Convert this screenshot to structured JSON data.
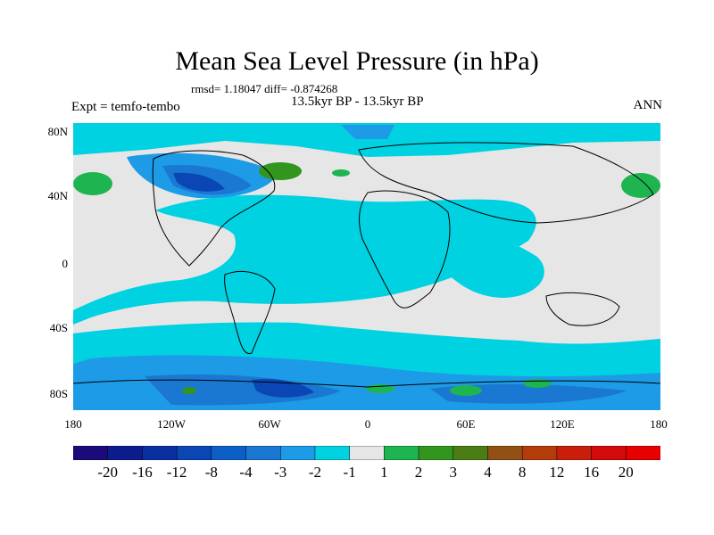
{
  "title": "Mean Sea Level Pressure (in hPa)",
  "stats": "rmsd= 1.18047 diff= -0.874268",
  "subtitle": "13.5kyr BP - 13.5kyr BP",
  "experiment": "Expt = temfo-tembo",
  "season": "ANN",
  "map": {
    "lon_range": [
      -180,
      180
    ],
    "lat_range": [
      -90,
      90
    ],
    "y_ticks": [
      "80N",
      "40N",
      "0",
      "40S",
      "80S"
    ],
    "y_tick_values": [
      80,
      40,
      0,
      -40,
      -80
    ],
    "x_ticks": [
      "180",
      "120W",
      "60W",
      "0",
      "60E",
      "120E",
      "180"
    ],
    "x_tick_values": [
      -180,
      -120,
      -60,
      0,
      60,
      120,
      180
    ],
    "background_color": "#e6e6e6"
  },
  "colorbar": {
    "labels": [
      "-20",
      "-16",
      "-12",
      "-8",
      "-4",
      "-3",
      "-2",
      "-1",
      "1",
      "2",
      "3",
      "4",
      "8",
      "12",
      "16",
      "20"
    ],
    "colors": [
      "#1a0a7a",
      "#0d1c8c",
      "#0a2fa0",
      "#0a46b4",
      "#0d5fc8",
      "#1a78d2",
      "#1e9be6",
      "#00d2e1",
      "#e6e6e6",
      "#1eb450",
      "#32961e",
      "#4b7d14",
      "#915014",
      "#b43c0a",
      "#c81e0a",
      "#d20a0a",
      "#e60000"
    ]
  }
}
